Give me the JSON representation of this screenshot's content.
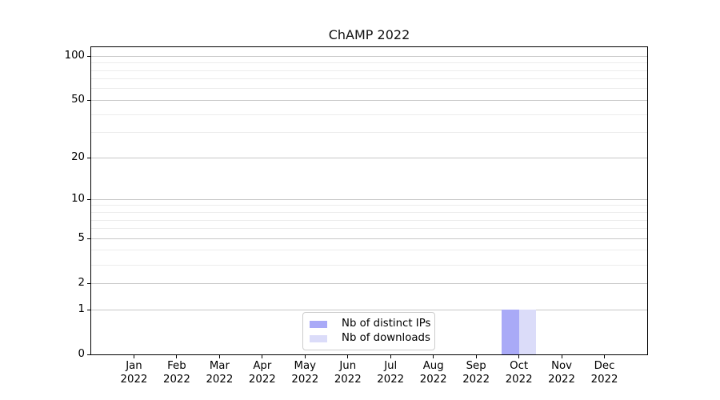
{
  "title": "ChAMP 2022",
  "chart_data": {
    "type": "bar",
    "title": "ChAMP 2022",
    "x_tick_labels": [
      {
        "month": "Jan",
        "year": "2022"
      },
      {
        "month": "Feb",
        "year": "2022"
      },
      {
        "month": "Mar",
        "year": "2022"
      },
      {
        "month": "Apr",
        "year": "2022"
      },
      {
        "month": "May",
        "year": "2022"
      },
      {
        "month": "Jun",
        "year": "2022"
      },
      {
        "month": "Jul",
        "year": "2022"
      },
      {
        "month": "Aug",
        "year": "2022"
      },
      {
        "month": "Sep",
        "year": "2022"
      },
      {
        "month": "Oct",
        "year": "2022"
      },
      {
        "month": "Nov",
        "year": "2022"
      },
      {
        "month": "Dec",
        "year": "2022"
      }
    ],
    "series": [
      {
        "name": "Nb of distinct IPs",
        "color": "#a9aaf7",
        "values": [
          0,
          0,
          0,
          0,
          0,
          0,
          0,
          0,
          0,
          1,
          0,
          0
        ]
      },
      {
        "name": "Nb of downloads",
        "color": "#dbdcf9",
        "values": [
          0,
          0,
          0,
          0,
          0,
          0,
          0,
          0,
          0,
          1,
          0,
          0
        ]
      }
    ],
    "yscale": "log1p",
    "ylim": [
      0,
      115
    ],
    "y_major_ticks": [
      0,
      1,
      2,
      5,
      10,
      20,
      50,
      100
    ],
    "y_minor_gridlines": [
      3,
      4,
      6,
      7,
      8,
      9,
      30,
      40,
      60,
      70,
      80,
      90
    ],
    "grid": "horizontal",
    "legend_position": "lower-center"
  },
  "colors": {
    "bar_distinct_ips": "#a9aaf7",
    "bar_downloads": "#dbdcf9",
    "grid_major": "#c8c8c8",
    "grid_minor": "#ebebeb",
    "axis": "#000000",
    "legend_border": "#cccccc",
    "background": "#ffffff"
  }
}
